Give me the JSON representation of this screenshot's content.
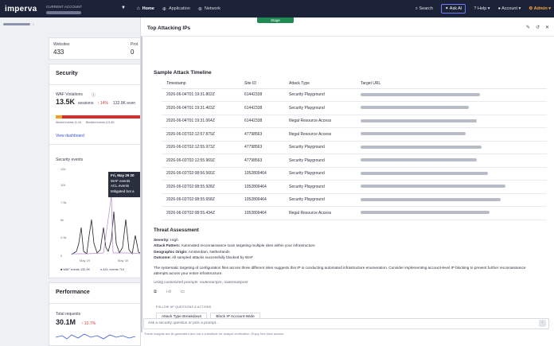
{
  "nav": {
    "logo": "imperva",
    "account_label": "CURRENT ACCOUNT",
    "home": "Home",
    "application": "Application",
    "network": "Network",
    "search": "Search",
    "ask_ai": "Ask AI",
    "help": "Help",
    "account": "Account",
    "admin": "Admin"
  },
  "stage": "Stage",
  "bg": {
    "websites_label": "Websites",
    "websites_value": "433",
    "prot_label": "Prot",
    "prot_value": "0",
    "security": "Security",
    "waf_label": "WAF Violations",
    "waf_value": "13.5K",
    "waf_sub": "sessions",
    "waf_delta": "↑ 14%",
    "waf_alt": "132.9K even",
    "alerted": "Alerted events 11.1K",
    "blocked": "Blocked events 121.8K",
    "view_dashboard": "View dashboard",
    "sec_events": "Security events",
    "y_ticks": [
      "12k",
      "10k",
      "7.5k",
      "5k",
      "2.5k",
      "0"
    ],
    "x_ticks": [
      "May 29",
      "May 30"
    ],
    "tooltip_title": "Fri, May 29 20",
    "tooltip_lines": [
      "WAF events",
      "ACL events",
      "Mitigated bot a"
    ],
    "legend": [
      "WAF events 132.9K",
      "ACL events 710"
    ],
    "performance": "Performance",
    "total_req_label": "Total requests",
    "total_req_value": "30.1M",
    "total_req_delta": "↑ 10.7%"
  },
  "panel": {
    "title": "Top Attacking IPs",
    "sample_title": "Sample Attack Timeline",
    "headers": [
      "Timestamp",
      "Site ID",
      "Attack Type",
      "Target URL"
    ],
    "rows": [
      {
        "ts": "2026-06-04T01:19:31.802Z",
        "site": "61442338",
        "type": "Security Playground",
        "w": 150
      },
      {
        "ts": "2026-06-04T01:19:31.403Z",
        "site": "61442338",
        "type": "Security Playground",
        "w": 136
      },
      {
        "ts": "2026-06-04T01:19:31.064Z",
        "site": "61442338",
        "type": "Illegal Resource Access",
        "w": 146
      },
      {
        "ts": "2026-06-03T02:12:57.879Z",
        "site": "47798563",
        "type": "Illegal Resource Access",
        "w": 132
      },
      {
        "ts": "2026-06-03T02:12:55.973Z",
        "site": "47798563",
        "type": "Security Playground",
        "w": 152
      },
      {
        "ts": "2026-06-03T02:12:55.969Z",
        "site": "47798563",
        "type": "Security Playground",
        "w": 146
      },
      {
        "ts": "2026-06-03T02:08:56.560Z",
        "site": "1052809464",
        "type": "Security Playground",
        "w": 160
      },
      {
        "ts": "2026-06-03T02:08:55.928Z",
        "site": "1052809464",
        "type": "Security Playground",
        "w": 182
      },
      {
        "ts": "2026-06-03T02:08:55.658Z",
        "site": "1052809464",
        "type": "Security Playground",
        "w": 176
      },
      {
        "ts": "2026-06-03T02:08:55.434Z",
        "site": "1052809464",
        "type": "Illegal Resource Access",
        "w": 162
      }
    ],
    "threat_title": "Threat Assessment",
    "severity_label": "Severity:",
    "severity": "High",
    "pattern_label": "Attack Pattern:",
    "pattern": "Automated reconnaissance scan targeting multiple sites within your infrastructure",
    "origin_label": "Geographic Origin:",
    "origin": "Amsterdam, Netherlands",
    "outcome_label": "Outcome:",
    "outcome": "All sampled attacks successfully blocked by WAF",
    "analysis": "The systematic targeting of configuration files across three different sites suggests this IP is conducting automated infrastructure enumeration. Consider implementing account-level IP blocking to prevent further reconnaissance attempts across your entire infrastructure.",
    "prompts": "Using customized prompts: routereactpre, routereactpost",
    "follow": "FOLLOW UP QUESTIONS & ACTIONS",
    "btn1": "Attack Type Breakdown",
    "btn2": "Block IP Account-Wide",
    "placeholder": "Ask a security question or pick a prompt...",
    "disclaimer": "These insights are AI-generated and not a substitute for analyst verification. Enjoy free beta access."
  }
}
